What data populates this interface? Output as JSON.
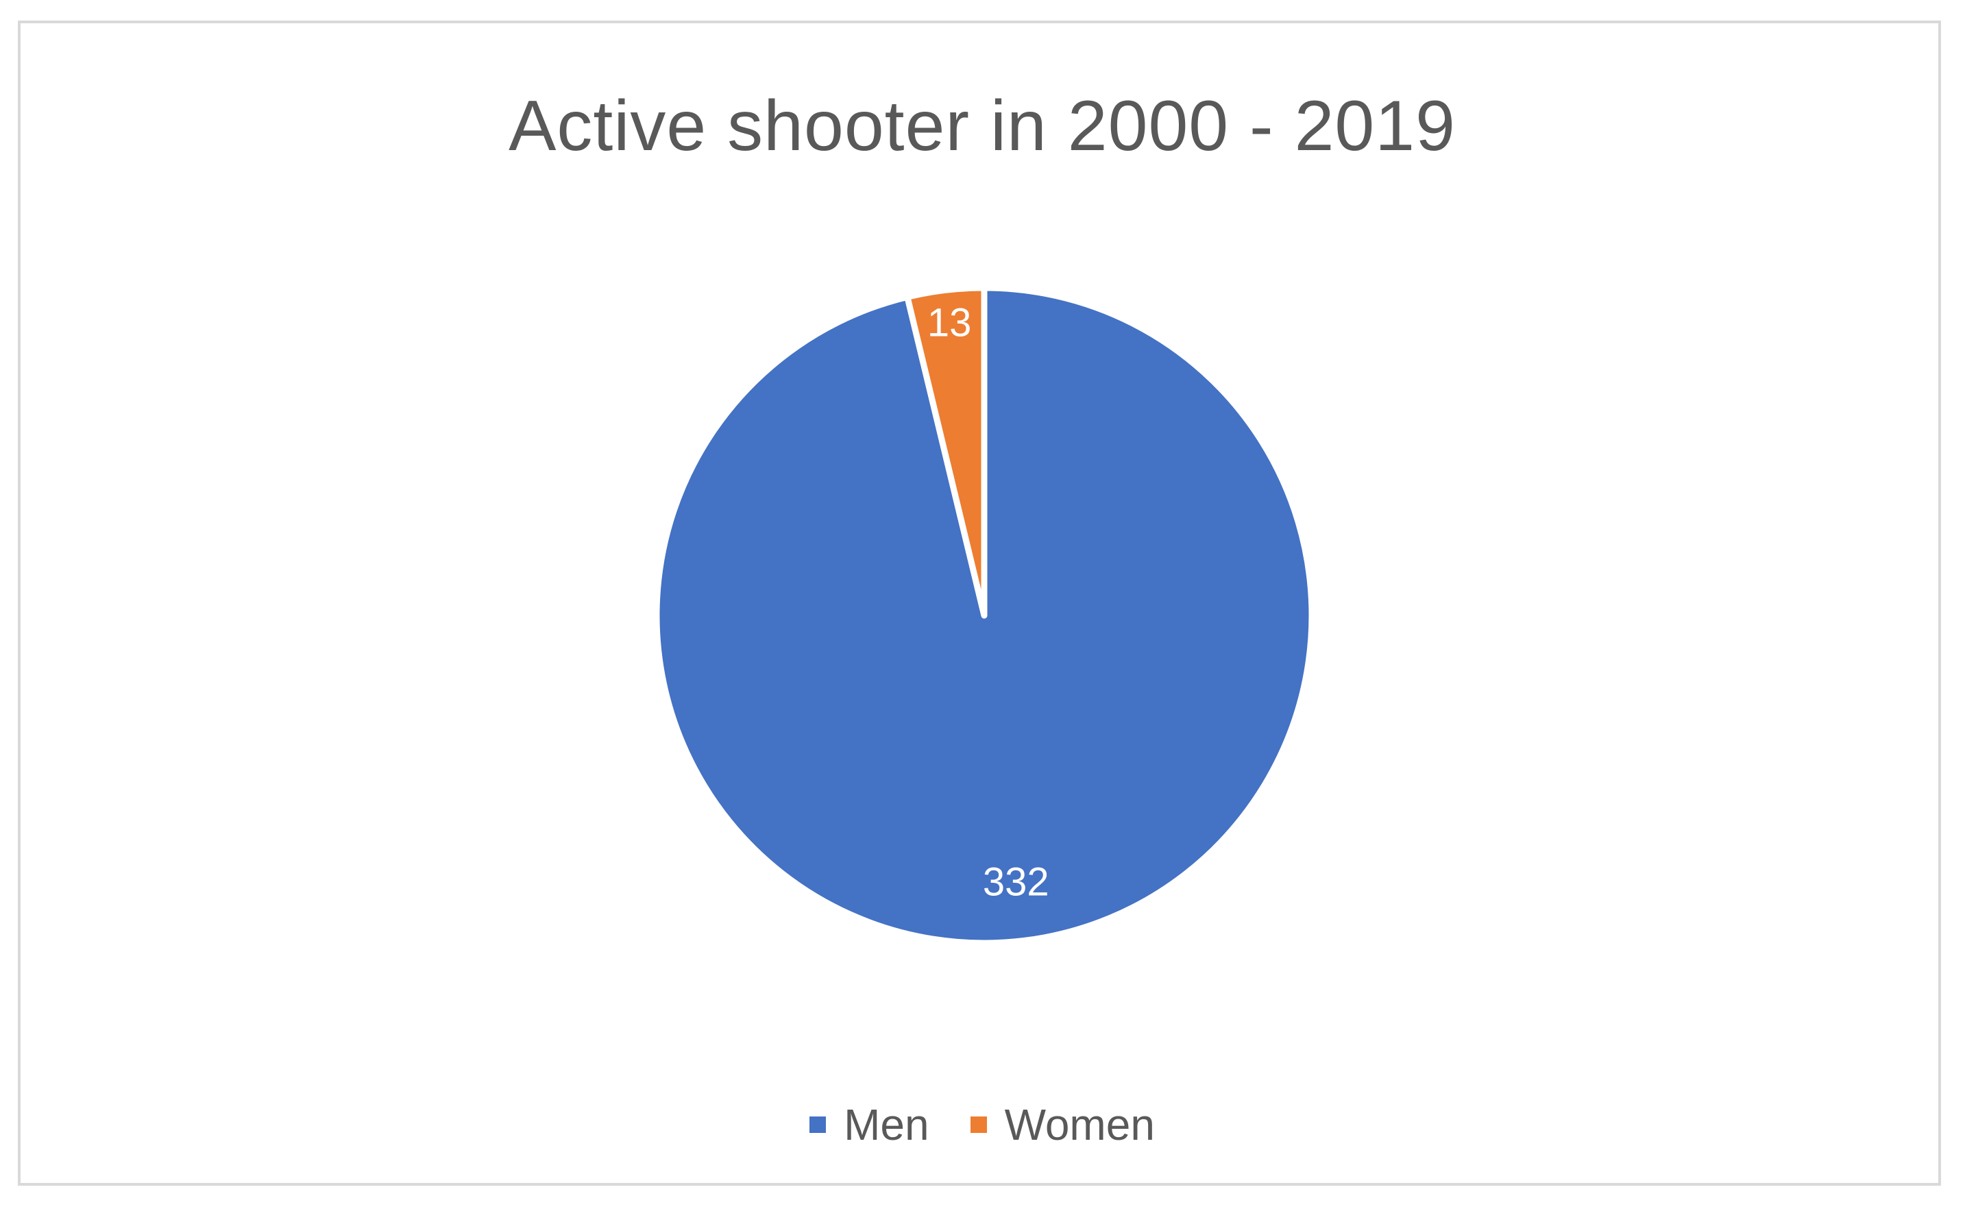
{
  "chart_data": {
    "type": "pie",
    "title": "Active shooter in 2000 - 2019",
    "categories": [
      "Men",
      "Women"
    ],
    "values": [
      332,
      13
    ],
    "colors": [
      "#4472C4",
      "#ED7D31"
    ],
    "data_labels": [
      "332",
      "13"
    ],
    "legend": "bottom",
    "start_angle": 0,
    "direction": "clockwise"
  }
}
